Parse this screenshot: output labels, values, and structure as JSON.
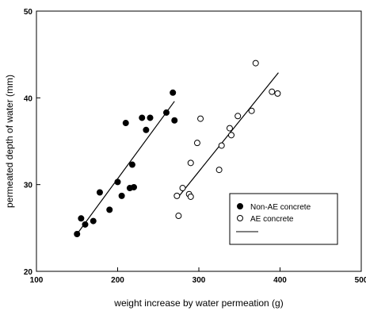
{
  "chart_data": {
    "type": "scatter",
    "title": "",
    "xlabel": "weight increase by water permeation (g)",
    "ylabel": "permeated depth of water (mm)",
    "xlim": [
      100,
      500
    ],
    "ylim": [
      20,
      50
    ],
    "xticks": [
      "100",
      "200",
      "300",
      "400",
      "500"
    ],
    "yticks": [
      "20",
      "30",
      "40",
      "50"
    ],
    "grid": false,
    "legend_position": "bottom-right",
    "series": [
      {
        "name": "Non-AE concrete",
        "marker": "filled-circle",
        "color": "#000000",
        "points": [
          [
            150,
            24.3
          ],
          [
            155,
            26.1
          ],
          [
            160,
            25.4
          ],
          [
            170,
            25.8
          ],
          [
            178,
            29.1
          ],
          [
            190,
            27.1
          ],
          [
            200,
            30.3
          ],
          [
            205,
            28.7
          ],
          [
            210,
            37.1
          ],
          [
            215,
            29.6
          ],
          [
            218,
            32.3
          ],
          [
            220,
            29.7
          ],
          [
            230,
            37.7
          ],
          [
            235,
            36.3
          ],
          [
            240,
            37.7
          ],
          [
            260,
            38.3
          ],
          [
            268,
            40.6
          ],
          [
            270,
            37.4
          ]
        ],
        "fit_line": [
          [
            150,
            24.3
          ],
          [
            270,
            39.6
          ]
        ]
      },
      {
        "name": "AE concrete",
        "marker": "open-circle",
        "color": "#000000",
        "points": [
          [
            273,
            28.7
          ],
          [
            275,
            26.4
          ],
          [
            280,
            29.6
          ],
          [
            288,
            28.9
          ],
          [
            290,
            28.6
          ],
          [
            290,
            32.5
          ],
          [
            298,
            34.8
          ],
          [
            302,
            37.6
          ],
          [
            325,
            31.7
          ],
          [
            328,
            34.5
          ],
          [
            338,
            36.5
          ],
          [
            340,
            35.7
          ],
          [
            348,
            37.9
          ],
          [
            365,
            38.5
          ],
          [
            370,
            44.0
          ],
          [
            390,
            40.7
          ],
          [
            397,
            40.5
          ]
        ],
        "fit_line": [
          [
            275,
            28.6
          ],
          [
            398,
            42.9
          ]
        ]
      }
    ],
    "legend_entries": [
      "Non-AE concrete",
      "AE concrete"
    ]
  }
}
